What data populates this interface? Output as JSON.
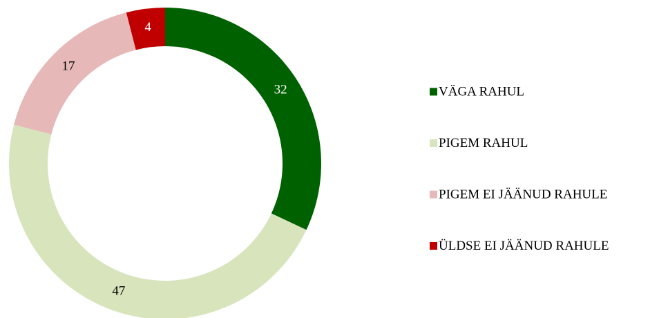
{
  "chart_data": {
    "type": "donut",
    "categories": [
      "VÄGA RAHUL",
      "PIGEM RAHUL",
      "PIGEM EI JÄÄNUD RAHULE",
      "ÜLDSE EI JÄÄNUD RAHULE"
    ],
    "values": [
      32,
      47,
      17,
      4
    ],
    "colors": [
      "#006100",
      "#d8e4bc",
      "#e6b9b8",
      "#c00000"
    ],
    "legend": "right"
  }
}
